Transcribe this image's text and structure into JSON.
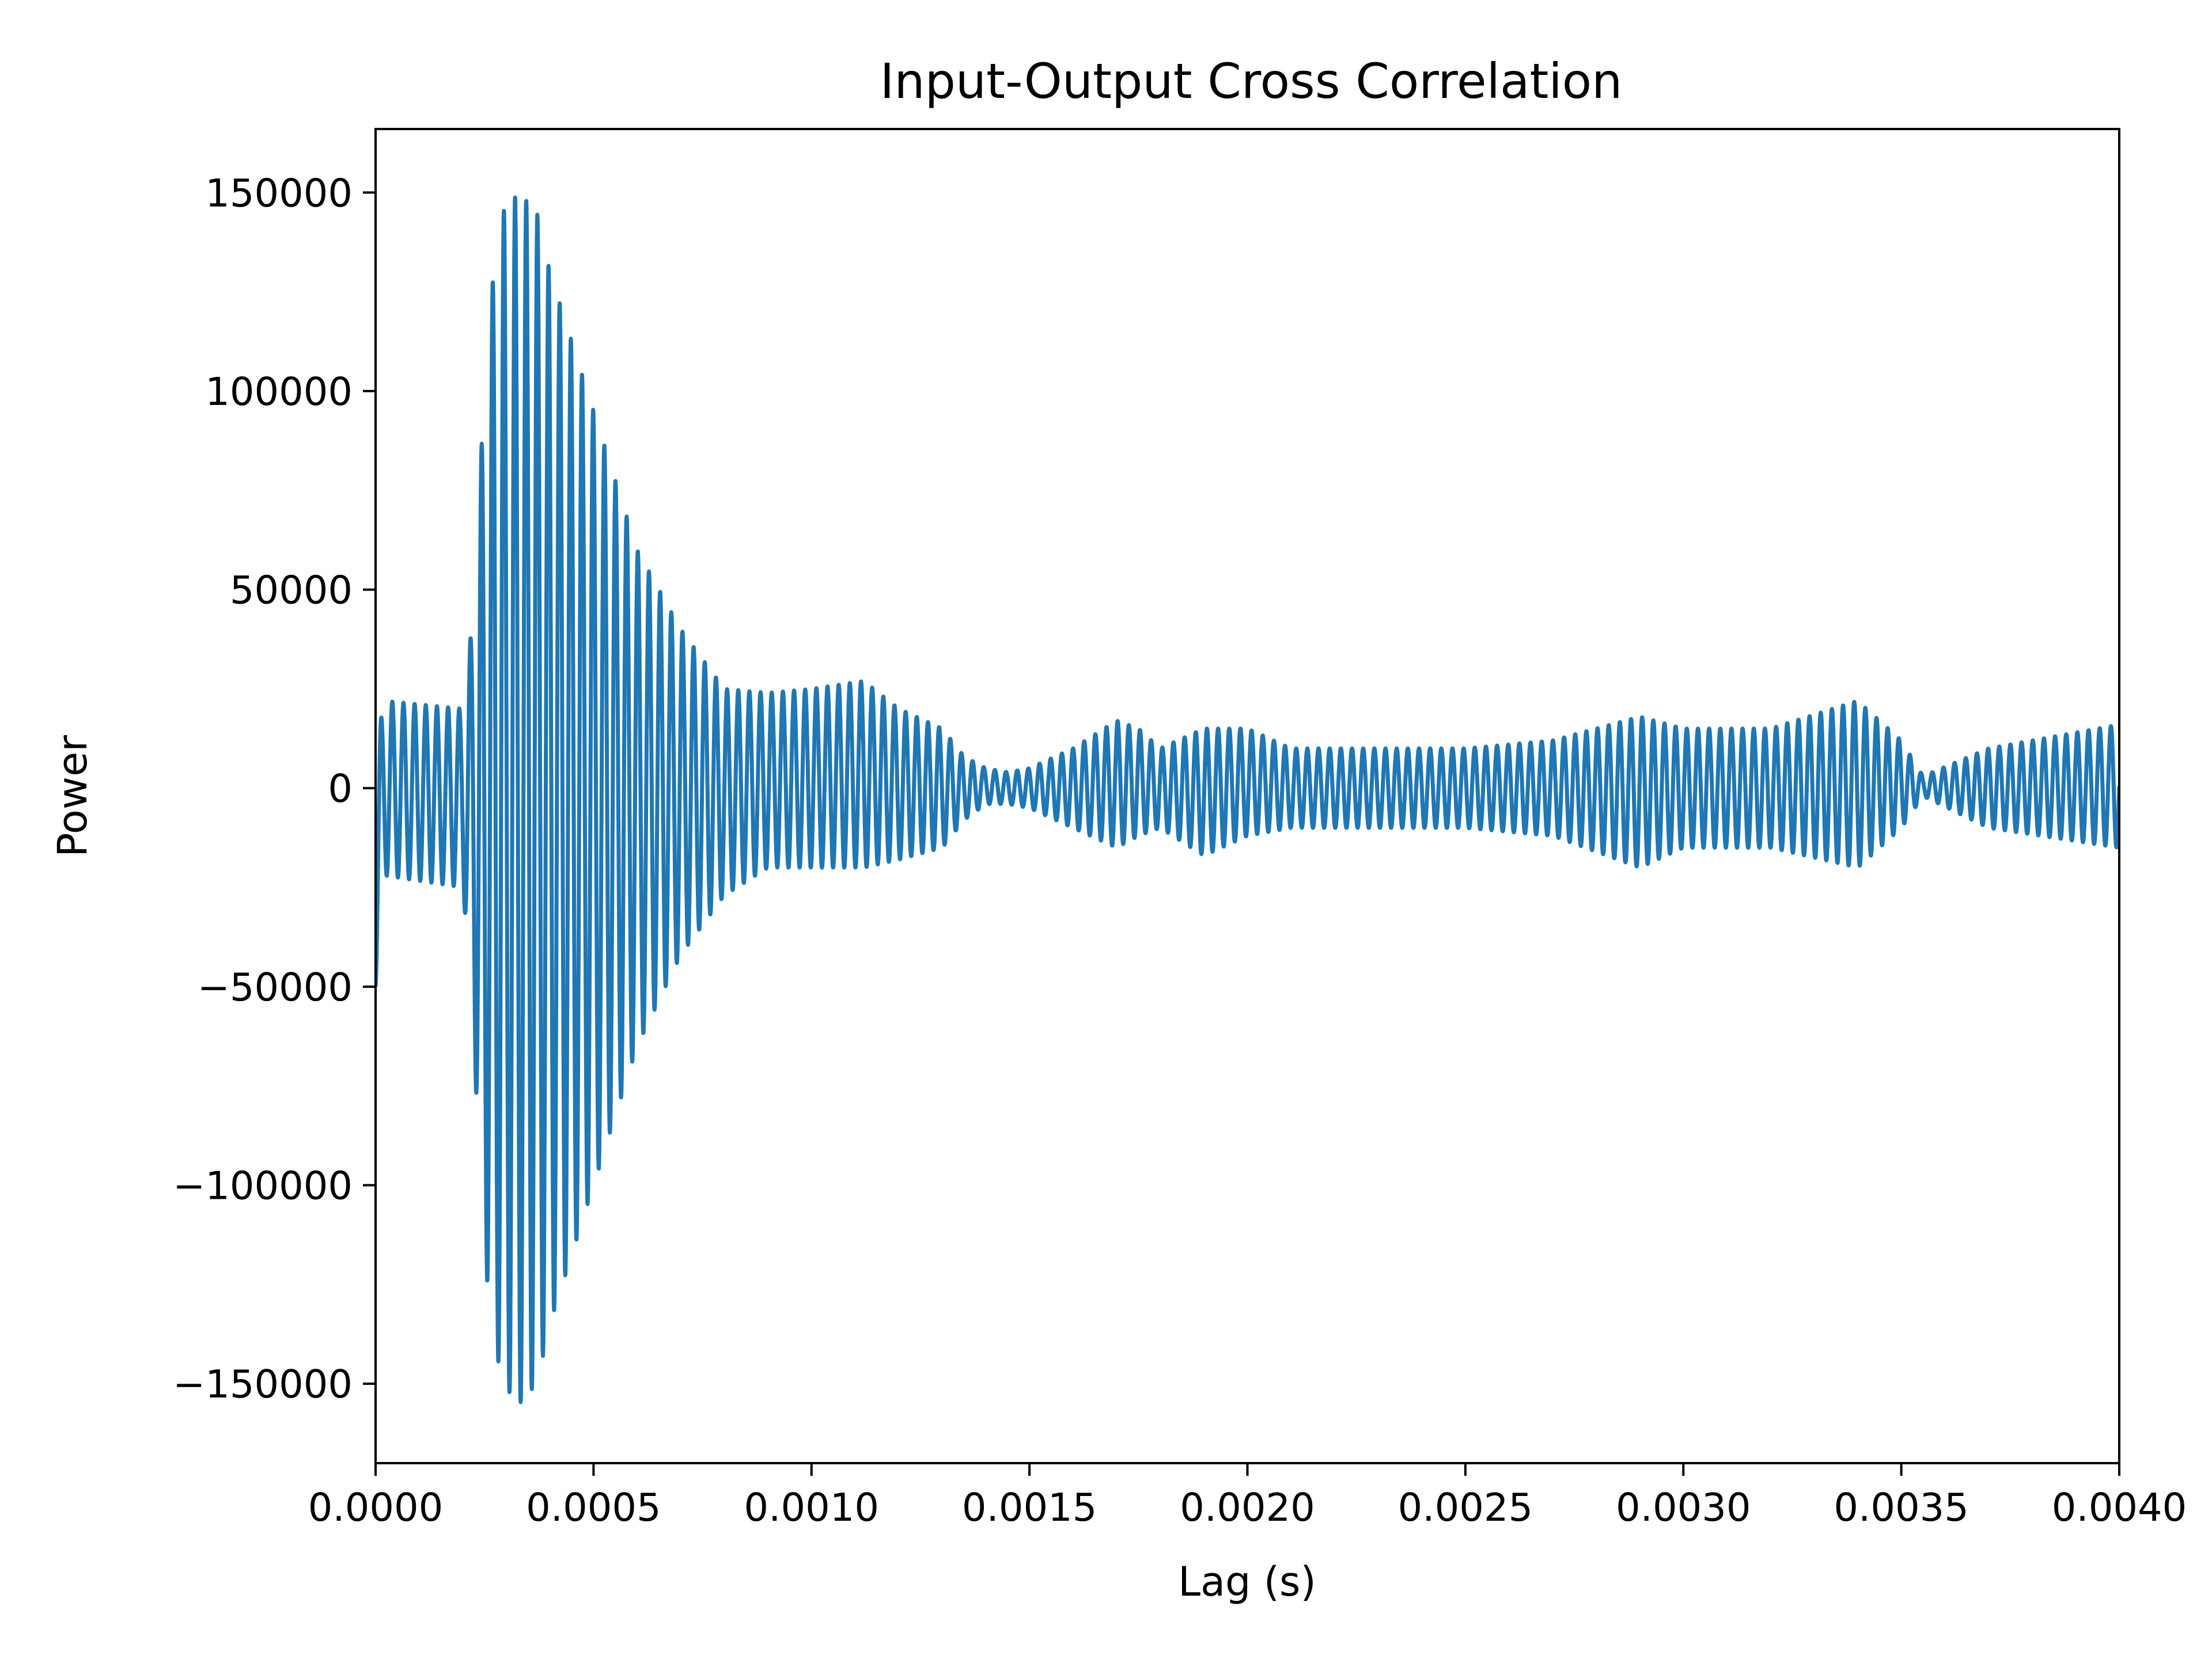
{
  "chart_data": {
    "type": "line",
    "title": "Input-Output Cross Correlation",
    "xlabel": "Lag (s)",
    "ylabel": "Power",
    "xlim": [
      0,
      0.004
    ],
    "ylim": [
      -170000,
      166000
    ],
    "x_ticks": [
      0,
      0.0005,
      0.001,
      0.0015,
      0.002,
      0.0025,
      0.003,
      0.0035,
      0.004
    ],
    "x_tick_labels": [
      "0.0000",
      "0.0005",
      "0.0010",
      "0.0015",
      "0.0020",
      "0.0025",
      "0.0030",
      "0.0035",
      "0.0040"
    ],
    "y_ticks": [
      150000,
      100000,
      50000,
      0,
      -50000,
      -100000,
      -150000
    ],
    "y_tick_labels": [
      "150000",
      "100000",
      "50000",
      "0",
      "−50000",
      "−100000",
      "−150000"
    ],
    "grid": false,
    "line_color": "#1f77b4",
    "oscillation_period_s": 2.56e-05,
    "series": [
      {
        "envelope": {
          "x": [
            0,
            2e-05,
            0.0002,
            0.00022,
            0.00024,
            0.00026,
            0.00029,
            0.00033,
            0.00037,
            0.0004,
            0.0005,
            0.0006,
            0.0007,
            0.0008,
            0.0009,
            0.001,
            0.00112,
            0.0012,
            0.0013,
            0.00135,
            0.0014,
            0.00145,
            0.0015,
            0.0016,
            0.0017,
            0.00175,
            0.0018,
            0.0019,
            0.002,
            0.0021,
            0.0023,
            0.0025,
            0.0027,
            0.0029,
            0.003,
            0.0032,
            0.0034,
            0.0035,
            0.00355,
            0.0037,
            0.004
          ],
          "upper": [
            10000,
            22000,
            20000,
            40000,
            80000,
            120000,
            145000,
            150000,
            145000,
            130000,
            95000,
            60000,
            40000,
            25000,
            24000,
            25000,
            27000,
            20000,
            15000,
            8000,
            5000,
            4000,
            5000,
            10000,
            17000,
            15000,
            10000,
            15000,
            15000,
            10000,
            10000,
            10000,
            12000,
            18000,
            15000,
            15000,
            22000,
            12000,
            3000,
            10000,
            16000
          ],
          "lower": [
            -50000,
            -22000,
            -25000,
            -50000,
            -100000,
            -130000,
            -150000,
            -155000,
            -150000,
            -135000,
            -100000,
            -65000,
            -42000,
            -27000,
            -20000,
            -20000,
            -20000,
            -18000,
            -15000,
            -8000,
            -4000,
            -4000,
            -5000,
            -10000,
            -15000,
            -12000,
            -10000,
            -17000,
            -12000,
            -10000,
            -10000,
            -10000,
            -12000,
            -20000,
            -15000,
            -15000,
            -20000,
            -10000,
            -2000,
            -10000,
            -15000
          ]
        }
      }
    ]
  }
}
